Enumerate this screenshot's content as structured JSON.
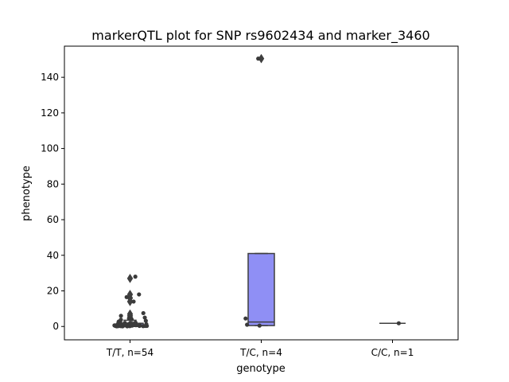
{
  "chart_data": {
    "type": "box",
    "title": "markerQTL plot for SNP rs9602434 and marker_3460",
    "xlabel": "genotype",
    "ylabel": "phenotype",
    "categories": [
      "T/T, n=54",
      "T/C, n=4",
      "C/C, n=1"
    ],
    "ylim": [
      -7.5,
      157.5
    ],
    "yticks": [
      0,
      20,
      40,
      60,
      80,
      100,
      120,
      140
    ],
    "box_color": "#8f8ff5",
    "point_color": "#3a3a3a",
    "boxes": [
      {
        "category": "T/T, n=54",
        "q1": 0.0,
        "median": 0.3,
        "q3": 1.8,
        "whisker_low": 0.0,
        "whisker_high": 3.5,
        "outliers": [
          5,
          6,
          7,
          14,
          16,
          18,
          27
        ]
      },
      {
        "category": "T/C, n=4",
        "q1": 0.5,
        "median": 2.5,
        "q3": 41.0,
        "whisker_low": 0.5,
        "whisker_high": 41.0,
        "outliers": [
          150.5
        ]
      },
      {
        "category": "C/C, n=1",
        "q1": 1.8,
        "median": 1.8,
        "q3": 1.8,
        "whisker_low": 1.8,
        "whisker_high": 1.8,
        "outliers": []
      }
    ],
    "points": [
      {
        "category": "T/T, n=54",
        "values": [
          0.2,
          0.5,
          0.1,
          0.8,
          1.2,
          0.3,
          0.6,
          0.2,
          1.5,
          0.4,
          0.1,
          0.9,
          2.2,
          0.3,
          1.8,
          0.5,
          0.7,
          0.2,
          1.1,
          0.4,
          2.8,
          0.6,
          0.3,
          1.3,
          0.2,
          0.9,
          3.2,
          0.4,
          0.1,
          1.6,
          0.8,
          0.5,
          2.5,
          0.3,
          1.0,
          0.2,
          4.0,
          0.6,
          1.4,
          0.3,
          0.7,
          2.0,
          0.4,
          5.0,
          6.0,
          7.5,
          4.5,
          3.8,
          14.0,
          16.5,
          18.0,
          28.0,
          0.5,
          1.9
        ]
      },
      {
        "category": "T/C, n=4",
        "values": [
          0.5,
          1.0,
          4.5,
          150.5
        ]
      },
      {
        "category": "C/C, n=1",
        "values": [
          1.8
        ]
      }
    ]
  }
}
